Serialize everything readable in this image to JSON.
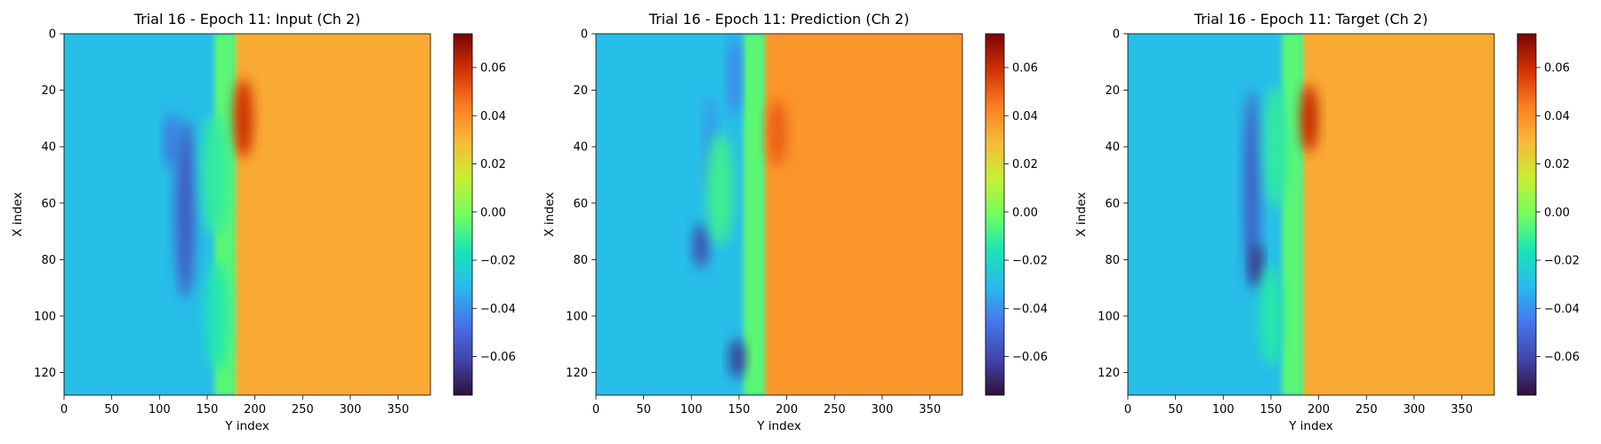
{
  "chart_data": [
    {
      "type": "heatmap",
      "title": "Trial 16 - Epoch 11: Input (Ch 2)",
      "xlabel": "Y index",
      "ylabel": "X index",
      "xlim": [
        0,
        384
      ],
      "ylim": [
        128,
        0
      ],
      "xticks": [
        0,
        50,
        100,
        150,
        200,
        250,
        300,
        350
      ],
      "yticks": [
        0,
        20,
        40,
        60,
        80,
        100,
        120
      ],
      "colorbar": {
        "range": [
          -0.076,
          0.074
        ],
        "ticks": [
          0.06,
          0.04,
          0.02,
          0.0,
          -0.02,
          -0.04,
          -0.06
        ],
        "tick_labels": [
          "0.06",
          "0.04",
          "0.02",
          "0.00",
          "−0.02",
          "−0.04",
          "−0.06"
        ]
      },
      "colormap": "turbo",
      "values": {
        "left_region": -0.03,
        "right_region": 0.033,
        "front_y": 178,
        "features": [
          {
            "kind": "blob",
            "y": 127,
            "x": 62,
            "ry": 10,
            "rx": 32,
            "value": -0.055
          },
          {
            "kind": "blob",
            "y": 112,
            "x": 38,
            "ry": 6,
            "rx": 10,
            "value": -0.05
          },
          {
            "kind": "blob",
            "y": 188,
            "x": 30,
            "ry": 10,
            "rx": 14,
            "value": 0.06
          },
          {
            "kind": "blob",
            "y": 158,
            "x": 50,
            "ry": 14,
            "rx": 22,
            "value": -0.012
          },
          {
            "kind": "blob",
            "y": 160,
            "x": 100,
            "ry": 12,
            "rx": 20,
            "value": -0.015
          }
        ]
      }
    },
    {
      "type": "heatmap",
      "title": "Trial 16 - Epoch 11: Prediction (Ch 2)",
      "xlabel": "Y index",
      "ylabel": "X index",
      "xlim": [
        0,
        384
      ],
      "ylim": [
        128,
        0
      ],
      "xticks": [
        0,
        50,
        100,
        150,
        200,
        250,
        300,
        350
      ],
      "yticks": [
        0,
        20,
        40,
        60,
        80,
        100,
        120
      ],
      "colorbar": {
        "range": [
          -0.076,
          0.074
        ],
        "ticks": [
          0.06,
          0.04,
          0.02,
          0.0,
          -0.02,
          -0.04,
          -0.06
        ],
        "tick_labels": [
          "0.06",
          "0.04",
          "0.02",
          "0.00",
          "−0.02",
          "−0.04",
          "−0.06"
        ]
      },
      "colormap": "turbo",
      "values": {
        "left_region": -0.03,
        "right_region": 0.038,
        "front_y": 175,
        "features": [
          {
            "kind": "blob",
            "y": 110,
            "x": 75,
            "ry": 8,
            "rx": 8,
            "value": -0.06
          },
          {
            "kind": "blob",
            "y": 148,
            "x": 115,
            "ry": 8,
            "rx": 7,
            "value": -0.065
          },
          {
            "kind": "blob",
            "y": 145,
            "x": 15,
            "ry": 6,
            "rx": 14,
            "value": -0.045
          },
          {
            "kind": "blob",
            "y": 120,
            "x": 40,
            "ry": 6,
            "rx": 18,
            "value": -0.04
          },
          {
            "kind": "blob",
            "y": 190,
            "x": 35,
            "ry": 10,
            "rx": 12,
            "value": 0.05
          },
          {
            "kind": "blob",
            "y": 130,
            "x": 55,
            "ry": 14,
            "rx": 20,
            "value": -0.01
          }
        ]
      }
    },
    {
      "type": "heatmap",
      "title": "Trial 16 - Epoch 11: Target (Ch 2)",
      "xlabel": "Y index",
      "ylabel": "X index",
      "xlim": [
        0,
        384
      ],
      "ylim": [
        128,
        0
      ],
      "xticks": [
        0,
        50,
        100,
        150,
        200,
        250,
        300,
        350
      ],
      "yticks": [
        0,
        20,
        40,
        60,
        80,
        100,
        120
      ],
      "colorbar": {
        "range": [
          -0.076,
          0.074
        ],
        "ticks": [
          0.06,
          0.04,
          0.02,
          0.0,
          -0.02,
          -0.04,
          -0.06
        ],
        "tick_labels": [
          "0.06",
          "0.04",
          "0.02",
          "0.00",
          "−0.02",
          "−0.04",
          "−0.06"
        ]
      },
      "colormap": "turbo",
      "values": {
        "left_region": -0.03,
        "right_region": 0.033,
        "front_y": 182,
        "features": [
          {
            "kind": "blob",
            "y": 130,
            "x": 55,
            "ry": 8,
            "rx": 35,
            "value": -0.055
          },
          {
            "kind": "blob",
            "y": 135,
            "x": 82,
            "ry": 6,
            "rx": 8,
            "value": -0.068
          },
          {
            "kind": "blob",
            "y": 190,
            "x": 30,
            "ry": 9,
            "rx": 12,
            "value": 0.062
          },
          {
            "kind": "blob",
            "y": 155,
            "x": 40,
            "ry": 12,
            "rx": 22,
            "value": -0.012
          },
          {
            "kind": "blob",
            "y": 150,
            "x": 100,
            "ry": 12,
            "rx": 18,
            "value": -0.014
          }
        ]
      }
    }
  ]
}
